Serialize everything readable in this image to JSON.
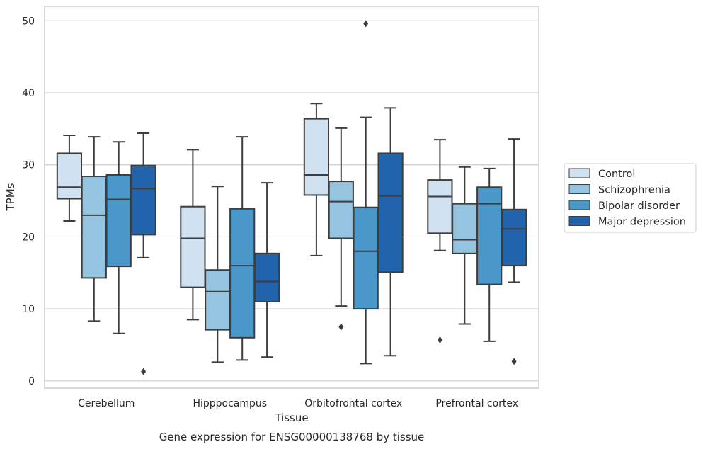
{
  "chart_data": {
    "type": "box",
    "xlabel": "Tissue",
    "ylabel": "TPMs",
    "caption": "Gene expression for ENSG00000138768 by tissue",
    "ylim": [
      -1,
      52
    ],
    "yticks": [
      0,
      10,
      20,
      30,
      40,
      50
    ],
    "grid": true,
    "legend_position": "right",
    "categories": [
      "Cerebellum",
      "Hipppocampus",
      "Orbitofrontal cortex",
      "Prefrontal cortex"
    ],
    "series": [
      {
        "name": "Control",
        "color": "#d0e1f2",
        "boxes": [
          {
            "whisker_low": 22.2,
            "q1": 25.3,
            "median": 26.9,
            "q3": 31.6,
            "whisker_high": 34.1,
            "outliers": []
          },
          {
            "whisker_low": 8.5,
            "q1": 13.0,
            "median": 19.8,
            "q3": 24.2,
            "whisker_high": 32.1,
            "outliers": []
          },
          {
            "whisker_low": 17.4,
            "q1": 25.8,
            "median": 28.6,
            "q3": 36.4,
            "whisker_high": 38.5,
            "outliers": []
          },
          {
            "whisker_low": 18.1,
            "q1": 20.5,
            "median": 25.6,
            "q3": 27.9,
            "whisker_high": 33.5,
            "outliers": [
              5.7
            ]
          }
        ]
      },
      {
        "name": "Schizophrenia",
        "color": "#94c4df",
        "boxes": [
          {
            "whisker_low": 8.3,
            "q1": 14.3,
            "median": 23.0,
            "q3": 28.4,
            "whisker_high": 33.9,
            "outliers": []
          },
          {
            "whisker_low": 2.6,
            "q1": 7.1,
            "median": 12.4,
            "q3": 15.4,
            "whisker_high": 27.0,
            "outliers": []
          },
          {
            "whisker_low": 10.4,
            "q1": 19.8,
            "median": 24.9,
            "q3": 27.7,
            "whisker_high": 35.1,
            "outliers": [
              7.5
            ]
          },
          {
            "whisker_low": 7.9,
            "q1": 17.7,
            "median": 19.6,
            "q3": 24.6,
            "whisker_high": 29.7,
            "outliers": []
          }
        ]
      },
      {
        "name": "Bipolar disorder",
        "color": "#4a98c9",
        "boxes": [
          {
            "whisker_low": 6.6,
            "q1": 15.9,
            "median": 25.2,
            "q3": 28.6,
            "whisker_high": 33.2,
            "outliers": []
          },
          {
            "whisker_low": 2.9,
            "q1": 6.0,
            "median": 16.0,
            "q3": 23.9,
            "whisker_high": 33.9,
            "outliers": []
          },
          {
            "whisker_low": 2.4,
            "q1": 10.0,
            "median": 18.0,
            "q3": 24.1,
            "whisker_high": 36.6,
            "outliers": [
              49.6
            ]
          },
          {
            "whisker_low": 5.5,
            "q1": 13.4,
            "median": 24.6,
            "q3": 26.9,
            "whisker_high": 29.5,
            "outliers": []
          }
        ]
      },
      {
        "name": "Major depression",
        "color": "#2164ab",
        "boxes": [
          {
            "whisker_low": 17.1,
            "q1": 20.3,
            "median": 26.7,
            "q3": 29.9,
            "whisker_high": 34.4,
            "outliers": [
              1.3
            ]
          },
          {
            "whisker_low": 3.3,
            "q1": 11.0,
            "median": 13.8,
            "q3": 17.7,
            "whisker_high": 27.5,
            "outliers": []
          },
          {
            "whisker_low": 3.5,
            "q1": 15.1,
            "median": 25.7,
            "q3": 31.6,
            "whisker_high": 37.9,
            "outliers": []
          },
          {
            "whisker_low": 13.7,
            "q1": 16.0,
            "median": 21.1,
            "q3": 23.8,
            "whisker_high": 33.6,
            "outliers": [
              2.7
            ]
          }
        ]
      }
    ]
  }
}
